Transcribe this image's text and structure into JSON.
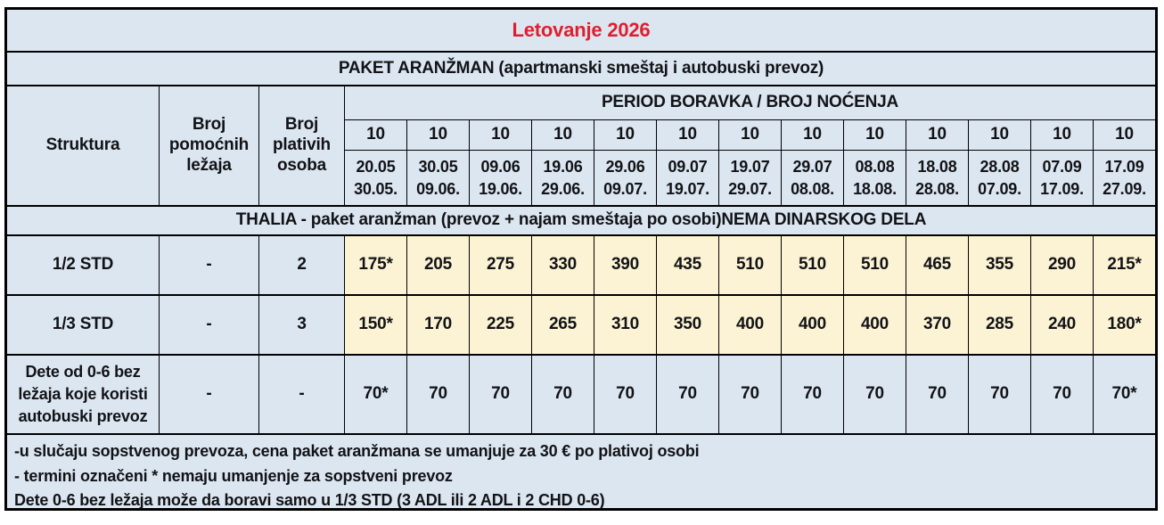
{
  "title": "Letovanje 2026",
  "subtitle": "PAKET ARANŽMAN (apartmanski smeštaj i autobuski prevoz)",
  "header": {
    "struktura": "Struktura",
    "broj_pomocnih": "Broj pomoćnih ležaja",
    "broj_plativih": "Broj plativih osoba",
    "period": "PERIOD BORAVKA / BROJ NOĆENJA",
    "nights": [
      "10",
      "10",
      "10",
      "10",
      "10",
      "10",
      "10",
      "10",
      "10",
      "10",
      "10",
      "10",
      "10"
    ],
    "dates": [
      {
        "from": "20.05",
        "to": "30.05."
      },
      {
        "from": "30.05",
        "to": "09.06."
      },
      {
        "from": "09.06",
        "to": "19.06."
      },
      {
        "from": "19.06",
        "to": "29.06."
      },
      {
        "from": "29.06",
        "to": "09.07."
      },
      {
        "from": "09.07",
        "to": "19.07."
      },
      {
        "from": "19.07",
        "to": "29.07."
      },
      {
        "from": "29.07",
        "to": "08.08."
      },
      {
        "from": "08.08",
        "to": "18.08."
      },
      {
        "from": "18.08",
        "to": "28.08."
      },
      {
        "from": "28.08",
        "to": "07.09."
      },
      {
        "from": "07.09",
        "to": "17.09."
      },
      {
        "from": "17.09",
        "to": "27.09."
      }
    ]
  },
  "section_title": "THALIA - paket aranžman (prevoz + najam smeštaja po osobi)NEMA DINARSKOG DELA",
  "rows": [
    {
      "struktura": "1/2 STD",
      "pomocnih": "-",
      "plativih": "2",
      "prices": [
        "175*",
        "205",
        "275",
        "330",
        "390",
        "435",
        "510",
        "510",
        "510",
        "465",
        "355",
        "290",
        "215*"
      ]
    },
    {
      "struktura": "1/3 STD",
      "pomocnih": "-",
      "plativih": "3",
      "prices": [
        "150*",
        "170",
        "225",
        "265",
        "310",
        "350",
        "400",
        "400",
        "400",
        "370",
        "285",
        "240",
        "180*"
      ]
    },
    {
      "struktura": "Dete od 0-6 bez ležaja koje koristi autobuski prevoz",
      "pomocnih": "-",
      "plativih": "-",
      "prices": [
        "70*",
        "70",
        "70",
        "70",
        "70",
        "70",
        "70",
        "70",
        "70",
        "70",
        "70",
        "70",
        "70*"
      ]
    }
  ],
  "notes": [
    "-u slučaju sopstvenog prevoza, cena paket aranžmana se umanjuje za 30 € po plativoj osobi",
    "- termini označeni * nemaju umanjenje za sopstveni prevoz",
    "Dete 0-6 bez ležaja može da boravi samo u 1/3 STD (3 ADL ili 2 ADL i 2 CHD 0-6)"
  ],
  "colors": {
    "blue": "#dce6f1",
    "yellow": "#fcf3d5",
    "red": "#e01f2e",
    "ink": "#121316",
    "line": "#000000"
  }
}
